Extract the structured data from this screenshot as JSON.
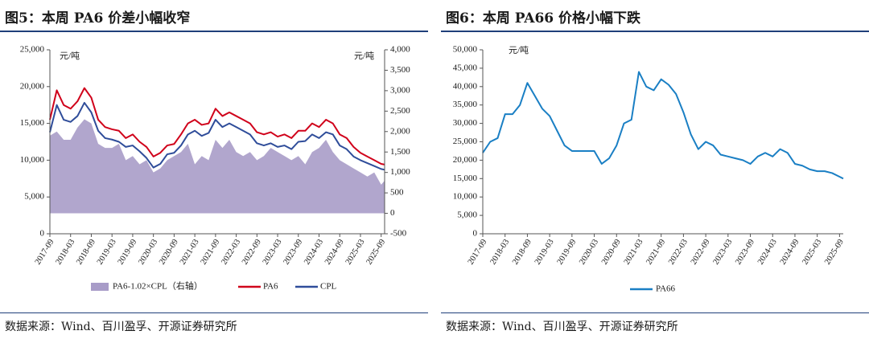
{
  "left": {
    "title": "图5：本周 PA6 价差小幅收窄",
    "source": "数据来源：Wind、百川盈孚、开源证券研究所"
  },
  "right": {
    "title": "图6：本周 PA66 价格小幅下跌",
    "source": "数据来源：Wind、百川盈孚、开源证券研究所"
  },
  "chart_data": [
    {
      "type": "line",
      "title": "",
      "x_ticks": [
        "2017-09",
        "2018-03",
        "2018-09",
        "2019-03",
        "2019-09",
        "2020-03",
        "2020-09",
        "2021-03",
        "2021-09",
        "2022-03",
        "2022-09",
        "2023-03",
        "2023-09",
        "2024-03",
        "2024-09",
        "2025-03",
        "2025-09"
      ],
      "x_range": [
        "2017-09",
        "2025-10"
      ],
      "y_left": {
        "unit": "元/吨",
        "ylim": [
          0,
          25000
        ],
        "ticks": [
          "0",
          "5,000",
          "10,000",
          "15,000",
          "20,000",
          "25,000"
        ]
      },
      "y_right": {
        "unit": "元/吨",
        "ylim": [
          -500,
          4000
        ],
        "ticks": [
          "-500",
          "0",
          "500",
          "1,000",
          "1,500",
          "2,000",
          "2,500",
          "3,000",
          "3,500",
          "4,000"
        ]
      },
      "legend_position": "bottom",
      "series": [
        {
          "name": "PA6-1.02×CPL（右轴）",
          "kind": "area",
          "axis": "right",
          "color": "#a89cc8",
          "x": [
            "2017-09",
            "2017-11",
            "2018-01",
            "2018-03",
            "2018-05",
            "2018-07",
            "2018-09",
            "2018-11",
            "2019-01",
            "2019-03",
            "2019-05",
            "2019-07",
            "2019-09",
            "2019-11",
            "2020-01",
            "2020-03",
            "2020-05",
            "2020-07",
            "2020-09",
            "2020-11",
            "2021-01",
            "2021-03",
            "2021-05",
            "2021-07",
            "2021-09",
            "2021-11",
            "2022-01",
            "2022-03",
            "2022-05",
            "2022-07",
            "2022-09",
            "2022-11",
            "2023-01",
            "2023-03",
            "2023-05",
            "2023-07",
            "2023-09",
            "2023-11",
            "2024-01",
            "2024-03",
            "2024-05",
            "2024-07",
            "2024-09",
            "2024-11",
            "2025-01",
            "2025-03",
            "2025-05",
            "2025-07",
            "2025-09",
            "2025-10"
          ],
          "values": [
            1900,
            2000,
            1800,
            1800,
            2100,
            2300,
            2200,
            1700,
            1600,
            1600,
            1700,
            1300,
            1400,
            1200,
            1300,
            1000,
            1100,
            1300,
            1400,
            1500,
            1700,
            1200,
            1400,
            1300,
            1800,
            1600,
            1800,
            1500,
            1400,
            1500,
            1300,
            1400,
            1600,
            1500,
            1400,
            1300,
            1400,
            1200,
            1500,
            1600,
            1800,
            1500,
            1300,
            1200,
            1100,
            1000,
            900,
            1000,
            700,
            800
          ]
        },
        {
          "name": "PA6",
          "kind": "line",
          "axis": "left",
          "color": "#d0021b",
          "x": [
            "2017-09",
            "2017-11",
            "2018-01",
            "2018-03",
            "2018-05",
            "2018-07",
            "2018-09",
            "2018-11",
            "2019-01",
            "2019-03",
            "2019-05",
            "2019-07",
            "2019-09",
            "2019-11",
            "2020-01",
            "2020-03",
            "2020-05",
            "2020-07",
            "2020-09",
            "2020-11",
            "2021-01",
            "2021-03",
            "2021-05",
            "2021-07",
            "2021-09",
            "2021-11",
            "2022-01",
            "2022-03",
            "2022-05",
            "2022-07",
            "2022-09",
            "2022-11",
            "2023-01",
            "2023-03",
            "2023-05",
            "2023-07",
            "2023-09",
            "2023-11",
            "2024-01",
            "2024-03",
            "2024-05",
            "2024-07",
            "2024-09",
            "2024-11",
            "2025-01",
            "2025-03",
            "2025-05",
            "2025-07",
            "2025-09",
            "2025-10"
          ],
          "values": [
            15500,
            19500,
            17500,
            17000,
            18000,
            19800,
            18500,
            15500,
            14500,
            14200,
            14000,
            13000,
            13500,
            12500,
            11800,
            10500,
            11000,
            12000,
            12200,
            13500,
            15000,
            15500,
            14800,
            15000,
            17000,
            16000,
            16500,
            16000,
            15500,
            15000,
            13800,
            13500,
            13800,
            13200,
            13500,
            13000,
            14000,
            14000,
            15000,
            14500,
            15500,
            15000,
            13500,
            13000,
            11800,
            11000,
            10500,
            10000,
            9500,
            9400
          ]
        },
        {
          "name": "CPL",
          "kind": "line",
          "axis": "left",
          "color": "#2f4d9a",
          "x": [
            "2017-09",
            "2017-11",
            "2018-01",
            "2018-03",
            "2018-05",
            "2018-07",
            "2018-09",
            "2018-11",
            "2019-01",
            "2019-03",
            "2019-05",
            "2019-07",
            "2019-09",
            "2019-11",
            "2020-01",
            "2020-03",
            "2020-05",
            "2020-07",
            "2020-09",
            "2020-11",
            "2021-01",
            "2021-03",
            "2021-05",
            "2021-07",
            "2021-09",
            "2021-11",
            "2022-01",
            "2022-03",
            "2022-05",
            "2022-07",
            "2022-09",
            "2022-11",
            "2023-01",
            "2023-03",
            "2023-05",
            "2023-07",
            "2023-09",
            "2023-11",
            "2024-01",
            "2024-03",
            "2024-05",
            "2024-07",
            "2024-09",
            "2024-11",
            "2025-01",
            "2025-03",
            "2025-05",
            "2025-07",
            "2025-09",
            "2025-10"
          ],
          "values": [
            13800,
            17500,
            15500,
            15200,
            16000,
            17800,
            16500,
            14000,
            13000,
            12800,
            12500,
            11800,
            12000,
            11200,
            10300,
            9000,
            9500,
            10800,
            11000,
            12000,
            13500,
            14000,
            13300,
            13700,
            15500,
            14500,
            15000,
            14500,
            14000,
            13500,
            12300,
            12000,
            12300,
            11800,
            12000,
            11500,
            12500,
            12600,
            13500,
            13000,
            13800,
            13500,
            12000,
            11500,
            10500,
            10000,
            9600,
            9200,
            8800,
            8700
          ]
        }
      ]
    },
    {
      "type": "line",
      "title": "",
      "x_ticks": [
        "2017-09",
        "2018-03",
        "2018-09",
        "2019-03",
        "2019-09",
        "2020-03",
        "2020-09",
        "2021-03",
        "2021-09",
        "2022-03",
        "2022-09",
        "2023-03",
        "2023-09",
        "2024-03",
        "2024-09",
        "2025-03",
        "2025-09"
      ],
      "x_range": [
        "2017-09",
        "2025-10"
      ],
      "y": {
        "unit": "元/吨",
        "ylim": [
          0,
          50000
        ],
        "ticks": [
          "0",
          "5,000",
          "10,000",
          "15,000",
          "20,000",
          "25,000",
          "30,000",
          "35,000",
          "40,000",
          "45,000",
          "50,000"
        ]
      },
      "legend_position": "bottom",
      "series": [
        {
          "name": "PA66",
          "kind": "line",
          "color": "#1a7fc4",
          "x": [
            "2017-09",
            "2017-11",
            "2018-01",
            "2018-03",
            "2018-05",
            "2018-07",
            "2018-09",
            "2018-11",
            "2019-01",
            "2019-03",
            "2019-05",
            "2019-07",
            "2019-09",
            "2019-11",
            "2020-01",
            "2020-03",
            "2020-05",
            "2020-07",
            "2020-09",
            "2020-11",
            "2021-01",
            "2021-03",
            "2021-05",
            "2021-07",
            "2021-09",
            "2021-11",
            "2022-01",
            "2022-03",
            "2022-05",
            "2022-07",
            "2022-09",
            "2022-11",
            "2023-01",
            "2023-03",
            "2023-05",
            "2023-07",
            "2023-09",
            "2023-11",
            "2024-01",
            "2024-03",
            "2024-05",
            "2024-07",
            "2024-09",
            "2024-11",
            "2025-01",
            "2025-03",
            "2025-05",
            "2025-07",
            "2025-09",
            "2025-10"
          ],
          "values": [
            22000,
            25000,
            26000,
            32500,
            32500,
            35000,
            41000,
            37500,
            34000,
            32000,
            28000,
            24000,
            22500,
            22500,
            22500,
            22500,
            19000,
            20500,
            24000,
            30000,
            31000,
            44000,
            40000,
            39000,
            42000,
            40500,
            38000,
            33000,
            27000,
            23000,
            25000,
            24000,
            21500,
            21000,
            20500,
            20000,
            19000,
            21000,
            22000,
            21000,
            23000,
            22000,
            19000,
            18500,
            17500,
            17000,
            17000,
            16500,
            15500,
            15000
          ]
        }
      ]
    }
  ]
}
